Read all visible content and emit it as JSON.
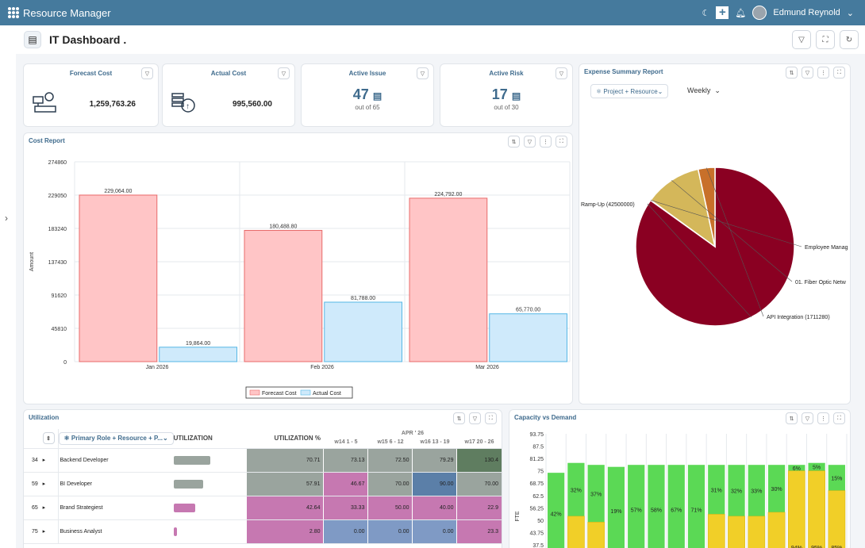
{
  "app": {
    "title": "Resource Manager",
    "user": "Edmund Reynold"
  },
  "page": {
    "title": "IT Dashboard ."
  },
  "kpis": {
    "forecast": {
      "title": "Forecast Cost",
      "value": "1,259,763.26"
    },
    "actual": {
      "title": "Actual Cost",
      "value": "995,560.00"
    },
    "issue": {
      "title": "Active Issue",
      "value": "47",
      "sub": "out of 65"
    },
    "risk": {
      "title": "Active Risk",
      "value": "17",
      "sub": "out of 30"
    }
  },
  "expense": {
    "title": "Expense Summary Report",
    "group_by": "Project + Resource",
    "period": "Weekly"
  },
  "cost_report": {
    "title": "Cost Report"
  },
  "utilization": {
    "title": "Utilization",
    "group_by": "Primary Role + Resource + P...",
    "col_util": "UTILIZATION",
    "col_util_pct": "UTILIZATION %",
    "month": "APR ' 26",
    "weeks": [
      "w14 1 - 5",
      "w15 6 - 12",
      "w16 13 - 19",
      "w17 20 - 26"
    ],
    "rows": [
      {
        "id": "34",
        "name": "Backend Developer",
        "util_pct": "70.71",
        "w": [
          "73.13",
          "72.50",
          "79.29",
          "130.4"
        ],
        "colors": [
          "#9aa49e",
          "#9aa49e",
          "#9aa49e",
          "#5f7d60"
        ]
      },
      {
        "id": "59",
        "name": "BI Developer",
        "util_pct": "57.91",
        "w": [
          "46.67",
          "70.00",
          "90.00",
          "70.00"
        ],
        "colors": [
          "#c678b1",
          "#9aa49e",
          "#5b7fa8",
          "#9aa49e"
        ]
      },
      {
        "id": "65",
        "name": "Brand Strategiest",
        "util_pct": "42.64",
        "w": [
          "33.33",
          "50.00",
          "40.00",
          "22.9"
        ],
        "colors": [
          "#c678b1",
          "#c678b1",
          "#c678b1",
          "#c678b1"
        ]
      },
      {
        "id": "75",
        "name": "Business Analyst",
        "util_pct": "2.80",
        "w": [
          "0.00",
          "0.00",
          "0.00",
          "23.3"
        ],
        "colors": [
          "#7f9ac5",
          "#7f9ac5",
          "#7f9ac5",
          "#c678b1"
        ]
      }
    ]
  },
  "capacity": {
    "title": "Capacity vs Demand",
    "ylabel": "FTE"
  },
  "colors": {
    "topbar": "#457a9d",
    "accent": "#3f6b8d",
    "forecast_fill": "#ffc5c6",
    "actual_fill": "#cfeafb"
  },
  "chart_data": [
    {
      "type": "bar",
      "id": "cost",
      "categories": [
        "Jan 2026",
        "Feb 2026",
        "Mar 2026"
      ],
      "series": [
        {
          "name": "Forecast Cost",
          "values": [
            229064.0,
            180488.8,
            224792.0
          ],
          "labels": [
            "229,064.00",
            "180,488.80",
            "224,792.00"
          ],
          "fill": "#ffc5c6",
          "stroke": "#e86a6a"
        },
        {
          "name": "Actual Cost",
          "values": [
            19864.0,
            81788.0,
            65770.0
          ],
          "labels": [
            "19,864.00",
            "81,788.00",
            "65,770.00"
          ],
          "fill": "#cfeafb",
          "stroke": "#56b7e6"
        }
      ],
      "yticks": [
        "0",
        "45810",
        "91620",
        "137430",
        "183240",
        "229050",
        "274860"
      ],
      "ylim": [
        0,
        274860
      ],
      "ylabel": "Amount",
      "grid": true,
      "legend": "bottom"
    },
    {
      "type": "pie",
      "id": "expense",
      "slices": [
        {
          "label": "Ramp-Up (42500000)",
          "value": 42500000,
          "color": "#8a0022"
        },
        {
          "label": "Employee Manag",
          "value": 40000,
          "color": "#8a0022"
        },
        {
          "label": "01. Fiber Optic Netw",
          "value": 5800000,
          "color": "#d4b75a"
        },
        {
          "label": "API Integration (1711280)",
          "value": 1711280,
          "color": "#c8702a"
        }
      ]
    },
    {
      "type": "bar",
      "id": "capacity",
      "yticks": [
        "37.5",
        "43.75",
        "50",
        "56.25",
        "62.5",
        "68.75",
        "75",
        "81.25",
        "87.5",
        "93.75"
      ],
      "ylim": [
        37.5,
        93.75
      ],
      "ylabel": "FTE",
      "bars": [
        {
          "demand": 0,
          "capacity": 74,
          "label": "42%"
        },
        {
          "demand": 52,
          "capacity": 79,
          "label": "32%"
        },
        {
          "demand": 49,
          "capacity": 78,
          "label": "37%"
        },
        {
          "demand": 0,
          "capacity": 77,
          "label": "19%"
        },
        {
          "demand": 0,
          "capacity": 78,
          "label": "57%"
        },
        {
          "demand": 0,
          "capacity": 78,
          "label": "58%"
        },
        {
          "demand": 0,
          "capacity": 78,
          "label": "67%"
        },
        {
          "demand": 0,
          "capacity": 78,
          "label": "71%"
        },
        {
          "demand": 53,
          "capacity": 78,
          "label": "31%"
        },
        {
          "demand": 52,
          "capacity": 78,
          "label": "32%"
        },
        {
          "demand": 52,
          "capacity": 78,
          "label": "33%"
        },
        {
          "demand": 54,
          "capacity": 78,
          "label": "30%"
        },
        {
          "demand": 75,
          "capacity": 78,
          "label": "6%",
          "bottom": "94%"
        },
        {
          "demand": 75,
          "capacity": 79,
          "label": "5%",
          "bottom": "95%"
        },
        {
          "demand": 65,
          "capacity": 78,
          "label": "15%",
          "bottom": "85%"
        }
      ]
    }
  ]
}
